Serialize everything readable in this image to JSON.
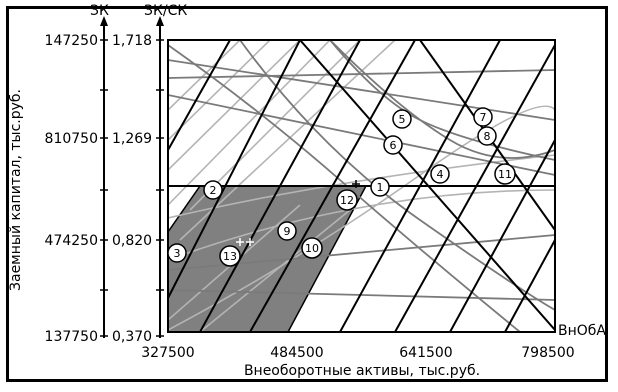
{
  "axes": {
    "top_left_label": "ЗК",
    "top_right_label": "ЗК/СК",
    "x_label": "Внеоборотные активы, тыс.руб.",
    "y_label": "Заемный капитал, тыс.руб.",
    "right_label": "ВнОбА"
  },
  "y_outer_ticks": [
    "147250",
    "810750",
    "474250",
    "137750"
  ],
  "y_inner_ticks": [
    "1,718",
    "1,269",
    "0,820",
    "0,370"
  ],
  "x_ticks": [
    "327500",
    "484500",
    "641500",
    "798500"
  ],
  "markers": [
    "1",
    "2",
    "3",
    "4",
    "5",
    "6",
    "7",
    "8",
    "9",
    "10",
    "11",
    "12",
    "13"
  ],
  "colors": {
    "background": "#ffffff",
    "shaded_area": "#808080",
    "grid_dark": "#000000",
    "grid_light": "#b0b0b0",
    "grid_mid": "#808080"
  },
  "icons": [
    "circle-marker-icon"
  ]
}
